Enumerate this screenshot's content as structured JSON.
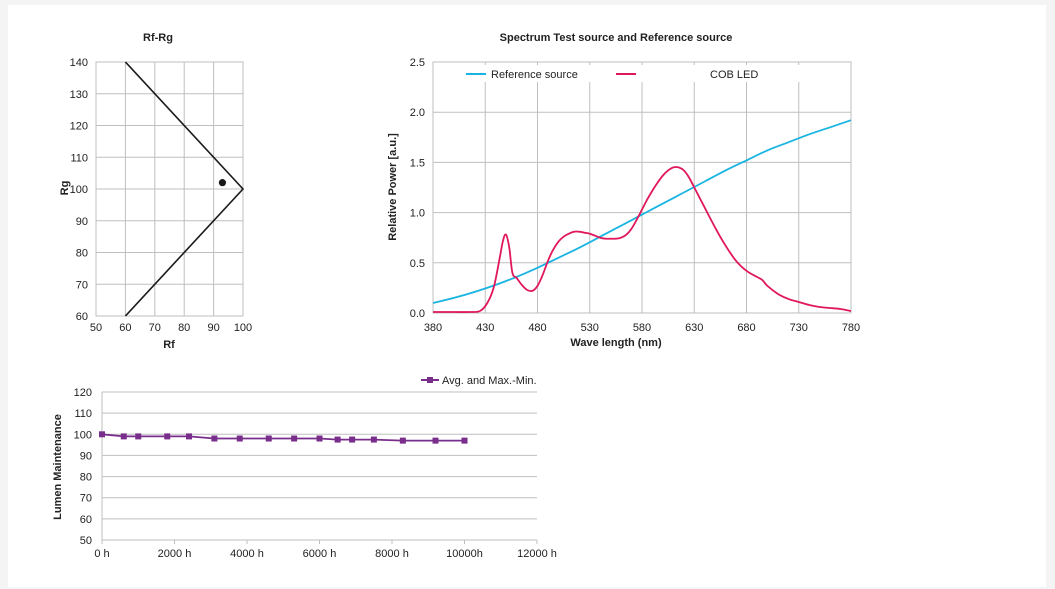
{
  "colors": {
    "reference": "#1ab4e2",
    "cob": "#e0175a",
    "lumen": "#7a2e8c",
    "boundary": "#1a1a1a",
    "point": "#1a1a1a"
  },
  "chart_data": [
    {
      "type": "scatter",
      "title": "Rf-Rg",
      "xlabel": "Rf",
      "ylabel": "Rg",
      "xlim": [
        50,
        100
      ],
      "ylim": [
        60,
        140
      ],
      "x_ticks": [
        "50",
        "60",
        "70",
        "80",
        "90",
        "100"
      ],
      "y_ticks": [
        "60",
        "70",
        "80",
        "90",
        "100",
        "110",
        "120",
        "130",
        "140"
      ],
      "grid": true,
      "boundary": [
        [
          60,
          140
        ],
        [
          100,
          100
        ],
        [
          60,
          60
        ]
      ],
      "points": [
        {
          "x": 93,
          "y": 102
        }
      ]
    },
    {
      "type": "line",
      "title": "Spectrum Test source and Reference source",
      "xlabel": "Wave length (nm)",
      "ylabel": "Relative Power [a.u.]",
      "xlim": [
        380,
        780
      ],
      "ylim": [
        0,
        2.5
      ],
      "x_ticks": [
        "380",
        "430",
        "480",
        "530",
        "580",
        "630",
        "680",
        "730",
        "780"
      ],
      "y_ticks": [
        "0.0",
        "0.5",
        "1.0",
        "1.5",
        "2.0",
        "2.5"
      ],
      "grid": true,
      "legend": "top",
      "series": [
        {
          "name": "Reference source",
          "x": [
            380,
            400,
            420,
            440,
            460,
            480,
            500,
            520,
            540,
            560,
            580,
            600,
            620,
            640,
            660,
            680,
            700,
            720,
            740,
            760,
            780
          ],
          "y": [
            0.1,
            0.15,
            0.21,
            0.28,
            0.36,
            0.45,
            0.55,
            0.65,
            0.76,
            0.87,
            0.98,
            1.09,
            1.2,
            1.31,
            1.42,
            1.52,
            1.62,
            1.7,
            1.78,
            1.85,
            1.92
          ]
        },
        {
          "name": "COB LED",
          "x": [
            380,
            400,
            415,
            425,
            432,
            438,
            443,
            447,
            450,
            453,
            456,
            460,
            465,
            470,
            475,
            480,
            485,
            490,
            495,
            500,
            505,
            510,
            515,
            520,
            525,
            530,
            535,
            540,
            545,
            550,
            555,
            560,
            565,
            570,
            575,
            580,
            585,
            590,
            595,
            600,
            605,
            610,
            615,
            620,
            625,
            630,
            640,
            650,
            660,
            670,
            680,
            690,
            695,
            700,
            710,
            720,
            730,
            740,
            750,
            760,
            770,
            780
          ],
          "y": [
            0.01,
            0.01,
            0.01,
            0.02,
            0.1,
            0.25,
            0.5,
            0.72,
            0.78,
            0.65,
            0.4,
            0.35,
            0.28,
            0.23,
            0.22,
            0.27,
            0.38,
            0.52,
            0.63,
            0.71,
            0.76,
            0.79,
            0.81,
            0.81,
            0.8,
            0.79,
            0.77,
            0.75,
            0.74,
            0.74,
            0.74,
            0.75,
            0.78,
            0.84,
            0.93,
            1.03,
            1.13,
            1.22,
            1.3,
            1.37,
            1.42,
            1.45,
            1.45,
            1.42,
            1.35,
            1.25,
            1.05,
            0.85,
            0.67,
            0.52,
            0.42,
            0.36,
            0.33,
            0.27,
            0.19,
            0.14,
            0.11,
            0.08,
            0.06,
            0.05,
            0.04,
            0.02
          ]
        }
      ]
    },
    {
      "type": "line",
      "title": "",
      "xlabel": "",
      "ylabel": "Lumen Maintenance",
      "xlim": [
        0,
        12000
      ],
      "ylim": [
        50,
        120
      ],
      "x_ticks": [
        "0 h",
        "2000 h",
        "4000 h",
        "6000 h",
        "8000 h",
        "10000h",
        "12000 h"
      ],
      "y_ticks": [
        "50",
        "60",
        "70",
        "80",
        "90",
        "100",
        "110",
        "120"
      ],
      "grid": "horizontal",
      "legend": "top-right",
      "series": [
        {
          "name": "Avg. and Max.-Min.",
          "x": [
            0,
            600,
            1000,
            1800,
            2400,
            3100,
            3800,
            4600,
            5300,
            6000,
            6500,
            6900,
            7500,
            8300,
            9200,
            10000
          ],
          "y": [
            100,
            99,
            99,
            99,
            99,
            98,
            98,
            98,
            98,
            98,
            97.5,
            97.5,
            97.5,
            97,
            97,
            97
          ]
        }
      ]
    }
  ]
}
